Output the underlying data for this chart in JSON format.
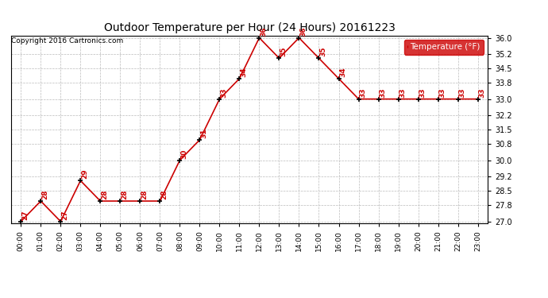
{
  "title": "Outdoor Temperature per Hour (24 Hours) 20161223",
  "copyright_text": "Copyright 2016 Cartronics.com",
  "legend_label": "Temperature (°F)",
  "hours": [
    "00:00",
    "01:00",
    "02:00",
    "03:00",
    "04:00",
    "05:00",
    "06:00",
    "07:00",
    "08:00",
    "09:00",
    "10:00",
    "11:00",
    "12:00",
    "13:00",
    "14:00",
    "15:00",
    "16:00",
    "17:00",
    "18:00",
    "19:00",
    "20:00",
    "21:00",
    "22:00",
    "23:00"
  ],
  "temperatures": [
    27,
    28,
    27,
    29,
    28,
    28,
    28,
    28,
    30,
    31,
    33,
    34,
    36,
    35,
    36,
    35,
    34,
    33,
    33,
    33,
    33,
    33,
    33,
    33
  ],
  "ylim_min": 27.0,
  "ylim_max": 36.0,
  "yticks": [
    27.0,
    27.8,
    28.5,
    29.2,
    30.0,
    30.8,
    31.5,
    32.2,
    33.0,
    33.8,
    34.5,
    35.2,
    36.0
  ],
  "line_color": "#cc0000",
  "marker_color": "#000000",
  "label_color": "#cc0000",
  "bg_color": "#ffffff",
  "grid_color": "#bbbbbb",
  "title_color": "#000000",
  "copyright_color": "#000000",
  "legend_bg": "#cc0000",
  "legend_text_color": "#ffffff",
  "fig_width": 6.9,
  "fig_height": 3.75,
  "dpi": 100
}
